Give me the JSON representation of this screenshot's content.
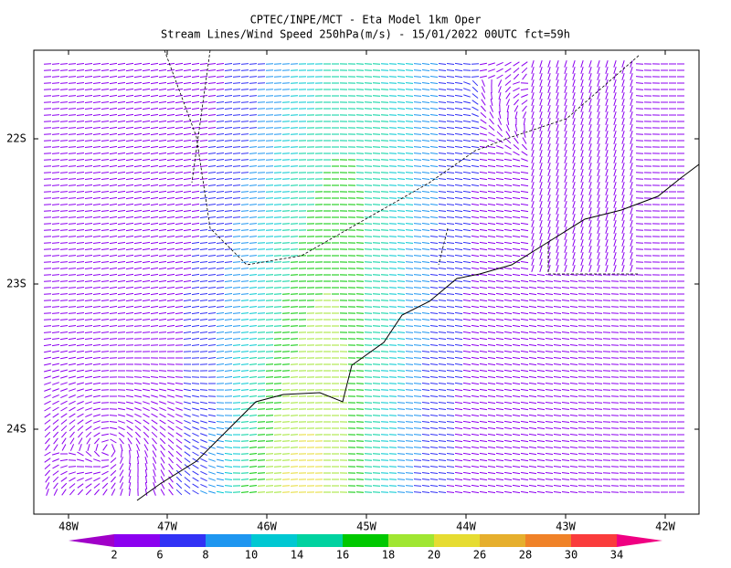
{
  "title": [
    "CPTEC/INPE/MCT -  Eta Model 1km Oper",
    "Stream Lines/Wind Speed 250hPa(m/s) - 15/01/2022 00UTC fct=59h"
  ],
  "map": {
    "lon_labels": [
      "48W",
      "47W",
      "46W",
      "45W",
      "44W",
      "43W",
      "42W"
    ],
    "lat_labels": [
      "22S",
      "23S",
      "24S"
    ]
  },
  "colorbar": {
    "colors": [
      "#a000c8",
      "#8c00f0",
      "#3232f5",
      "#1e96f0",
      "#00c8d2",
      "#00d2a0",
      "#00c800",
      "#a0e632",
      "#e6dc32",
      "#e6af2d",
      "#f08228",
      "#fa3c3c",
      "#f00082"
    ],
    "labels": [
      2,
      6,
      8,
      10,
      14,
      16,
      18,
      20,
      26,
      28,
      30,
      34
    ]
  }
}
